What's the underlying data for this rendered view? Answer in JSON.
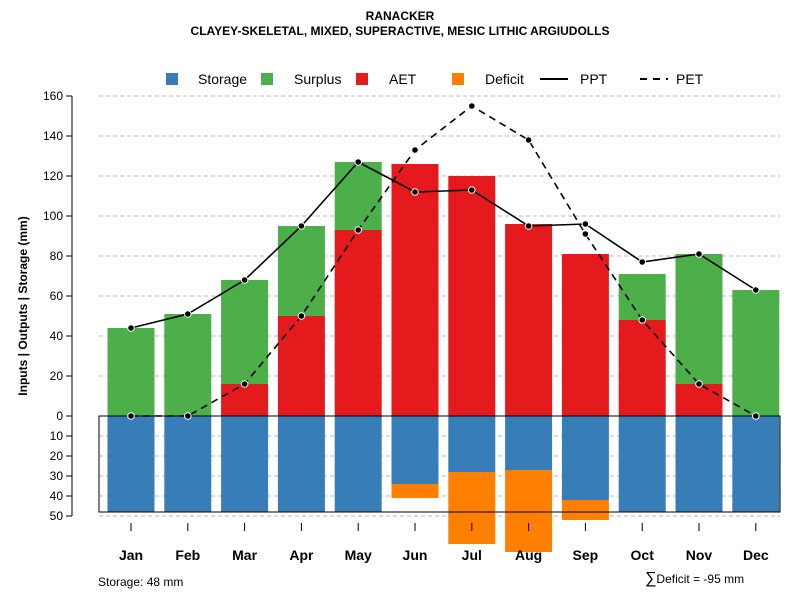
{
  "chart_data": {
    "type": "bar",
    "title": "RANACKER",
    "subtitle": "CLAYEY-SKELETAL, MIXED, SUPERACTIVE, MESIC LITHIC ARGIUDOLLS",
    "ylabel": "Inputs | Outputs | Storage    (mm)",
    "ylim": [
      -50,
      160
    ],
    "y_ticks_top": [
      "0",
      "20",
      "40",
      "60",
      "80",
      "100",
      "120",
      "140",
      "160"
    ],
    "y_ticks_bottom": [
      "10",
      "20",
      "30",
      "40",
      "50"
    ],
    "categories": [
      "Jan",
      "Feb",
      "Mar",
      "Apr",
      "May",
      "Jun",
      "Jul",
      "Aug",
      "Sep",
      "Oct",
      "Nov",
      "Dec"
    ],
    "legend": [
      "Storage",
      "Surplus",
      "AET",
      "Deficit",
      "PPT",
      "PET"
    ],
    "colors": {
      "storage": "#377EB8",
      "surplus": "#4DAF4A",
      "aet": "#E41A1C",
      "deficit": "#FF7F00",
      "grid": "#bbbbbb"
    },
    "series": {
      "aet": [
        0,
        0,
        16,
        50,
        93,
        126,
        120,
        96,
        81,
        48,
        16,
        0
      ],
      "surplus": [
        44,
        51,
        52,
        45,
        34,
        0,
        0,
        0,
        0,
        23,
        65,
        63
      ],
      "storage": [
        48,
        48,
        48,
        48,
        48,
        34,
        28,
        27,
        42,
        48,
        48,
        48
      ],
      "deficit": [
        0,
        0,
        0,
        0,
        0,
        7,
        36,
        41,
        10,
        0,
        0,
        0
      ],
      "ppt": [
        44,
        51,
        68,
        95,
        127,
        112,
        113,
        95,
        96,
        77,
        81,
        63
      ],
      "pet": [
        0,
        0,
        16,
        50,
        93,
        133,
        155,
        138,
        91,
        48,
        16,
        0
      ]
    },
    "storage_capacity": 48
  },
  "notes": {
    "storage": "Storage: 48 mm",
    "deficit_symbol": "∑",
    "deficit": "Deficit = -95 mm"
  }
}
